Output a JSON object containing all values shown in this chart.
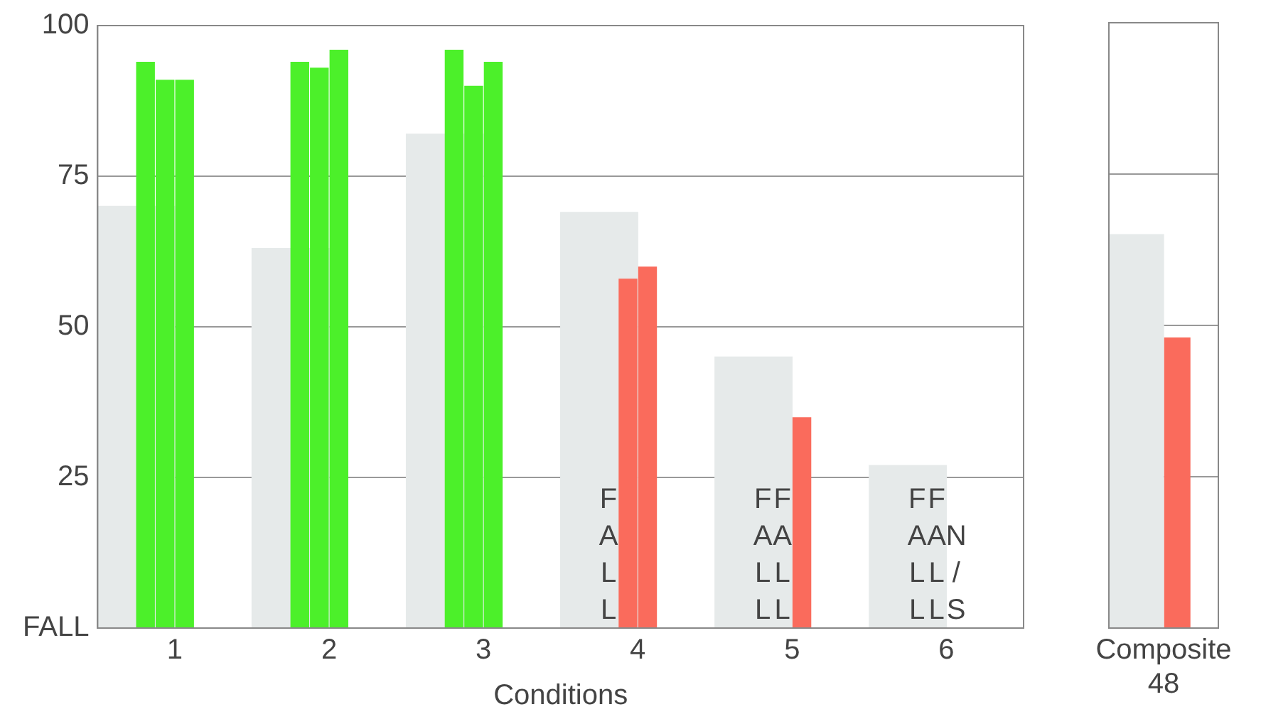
{
  "chart_data": [
    {
      "type": "bar",
      "xlabel": "Conditions",
      "categories": [
        "1",
        "2",
        "3",
        "4",
        "5",
        "6"
      ],
      "series": [
        {
          "color": "#e6eaea",
          "values": [
            70,
            63,
            82,
            69,
            45,
            27
          ]
        },
        {
          "colors": [
            "#4cf02a",
            "#4cf02a",
            "#4cf02a",
            "#fa6b5c",
            "#fa6b5c",
            "#fa6b5c"
          ],
          "values": [
            94,
            94,
            96,
            null,
            null,
            null
          ],
          "value_labels": [
            null,
            null,
            null,
            "FALL",
            "FALL",
            "FALL"
          ]
        },
        {
          "colors": [
            "#4cf02a",
            "#4cf02a",
            "#4cf02a",
            "#fa6b5c",
            "#fa6b5c",
            "#fa6b5c"
          ],
          "values": [
            91,
            93,
            90,
            58,
            null,
            null
          ],
          "value_labels": [
            null,
            null,
            null,
            null,
            "FALL",
            "FALL"
          ]
        },
        {
          "colors": [
            "#4cf02a",
            "#4cf02a",
            "#4cf02a",
            "#fa6b5c",
            "#fa6b5c",
            "#fa6b5c"
          ],
          "values": [
            91,
            96,
            94,
            60,
            35,
            null
          ],
          "value_labels": [
            null,
            null,
            null,
            null,
            null,
            "N/S"
          ]
        }
      ],
      "ylim": [
        0,
        100
      ],
      "yticks": [
        {
          "value": 0,
          "label": "FALL"
        },
        25,
        50,
        75,
        100
      ],
      "grid": "y",
      "legend": false
    },
    {
      "type": "bar",
      "categories": [
        "Composite"
      ],
      "series": [
        {
          "color": "#e6eaea",
          "values": [
            65
          ]
        },
        {
          "colors": [
            "#fa6b5c"
          ],
          "values": [
            48
          ],
          "value_labels": [
            "48"
          ]
        }
      ],
      "ylim": [
        0,
        100
      ],
      "yticks": [
        0,
        25,
        50,
        75,
        100
      ],
      "grid": "y",
      "legend": false,
      "tick_labels": "x"
    }
  ]
}
